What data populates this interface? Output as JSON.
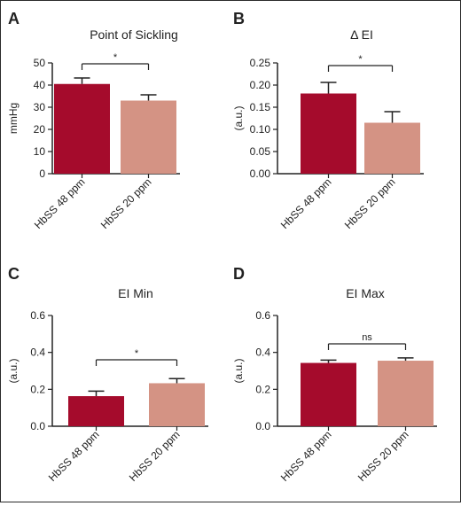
{
  "colors": {
    "series_a": "#a50b2c",
    "series_b": "#d49384",
    "ink": "#222222"
  },
  "chart_data": [
    {
      "panel": "A",
      "type": "bar",
      "title": "Point of Sickling",
      "xlabel": "",
      "ylabel": "mmHg",
      "categories": [
        "HbSS 48 ppm",
        "HbSS 20 ppm"
      ],
      "values": [
        40.5,
        33.0
      ],
      "errors": [
        2.7,
        2.6
      ],
      "ylim": [
        0,
        50
      ],
      "yticks": [
        "0",
        "10",
        "20",
        "30",
        "40",
        "50"
      ],
      "significance": "*",
      "grid": false
    },
    {
      "panel": "B",
      "type": "bar",
      "title": "Δ EI",
      "xlabel": "",
      "ylabel": "(a.u.)",
      "categories": [
        "HbSS 48 ppm",
        "HbSS 20 ppm"
      ],
      "values": [
        0.181,
        0.115
      ],
      "errors": [
        0.025,
        0.025
      ],
      "ylim": [
        0,
        0.25
      ],
      "yticks": [
        "0.00",
        "0.05",
        "0.10",
        "0.15",
        "0.20",
        "0.25"
      ],
      "significance": "*",
      "grid": false
    },
    {
      "panel": "C",
      "type": "bar",
      "title": "EI Min",
      "xlabel": "",
      "ylabel": "(a.u.)",
      "categories": [
        "HbSS 48 ppm",
        "HbSS 20 ppm"
      ],
      "values": [
        0.163,
        0.233
      ],
      "errors": [
        0.027,
        0.025
      ],
      "ylim": [
        0,
        0.6
      ],
      "yticks": [
        "0.0",
        "0.2",
        "0.4",
        "0.6"
      ],
      "significance": "*",
      "grid": false
    },
    {
      "panel": "D",
      "type": "bar",
      "title": "EI Max",
      "xlabel": "",
      "ylabel": "(a.u.)",
      "categories": [
        "HbSS 48 ppm",
        "HbSS 20 ppm"
      ],
      "values": [
        0.343,
        0.355
      ],
      "errors": [
        0.015,
        0.015
      ],
      "ylim": [
        0,
        0.6
      ],
      "yticks": [
        "0.0",
        "0.2",
        "0.4",
        "0.6"
      ],
      "significance": "ns",
      "grid": false
    }
  ]
}
